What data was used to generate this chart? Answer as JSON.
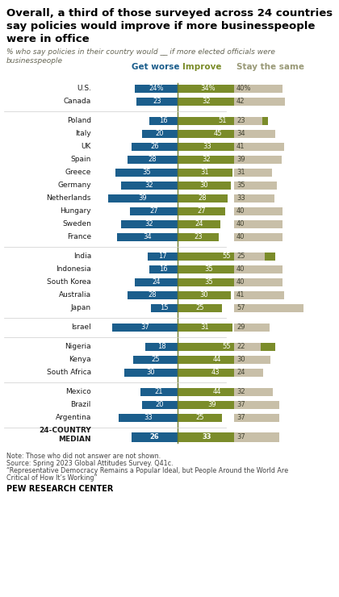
{
  "title": "Overall, a third of those surveyed across 24 countries\nsay policies would improve if more businesspeople\nwere in office",
  "subtitle": "% who say policies in their country would __ if more elected officials were\nbusinesspeople",
  "categories": [
    "U.S.",
    "Canada",
    "Poland",
    "Italy",
    "UK",
    "Spain",
    "Greece",
    "Germany",
    "Netherlands",
    "Hungary",
    "Sweden",
    "France",
    "India",
    "Indonesia",
    "South Korea",
    "Australia",
    "Japan",
    "Israel",
    "Nigeria",
    "Kenya",
    "South Africa",
    "Mexico",
    "Brazil",
    "Argentina",
    "24-COUNTRY\nMEDIAN"
  ],
  "worse": [
    24,
    23,
    16,
    20,
    26,
    28,
    35,
    32,
    39,
    27,
    32,
    34,
    17,
    16,
    24,
    28,
    15,
    37,
    18,
    25,
    30,
    21,
    20,
    33,
    26
  ],
  "improve": [
    34,
    32,
    51,
    45,
    33,
    32,
    31,
    30,
    28,
    27,
    24,
    23,
    55,
    35,
    35,
    30,
    25,
    31,
    55,
    44,
    43,
    44,
    39,
    25,
    33
  ],
  "same": [
    40,
    42,
    23,
    34,
    41,
    39,
    31,
    35,
    33,
    40,
    40,
    40,
    25,
    40,
    40,
    41,
    57,
    29,
    22,
    30,
    24,
    32,
    37,
    37,
    37
  ],
  "worse_color": "#1B5E8C",
  "improve_color": "#7B8C2A",
  "same_color": "#C8BFA8",
  "divider_color": "#6B7A2A",
  "note1": "Note: Those who did not answer are not shown.",
  "note2": "Source: Spring 2023 Global Attitudes Survey. Q41c.",
  "note3": "“Representative Democracy Remains a Popular Ideal, but People Around the World Are",
  "note4": "Critical of How It’s Working”",
  "source_bold": "PEW RESEARCH CENTER",
  "header_worse": "Get worse",
  "header_improve": "Improve",
  "header_same": "Stay the same",
  "group_gaps": [
    2,
    12,
    17,
    18,
    21,
    24
  ]
}
